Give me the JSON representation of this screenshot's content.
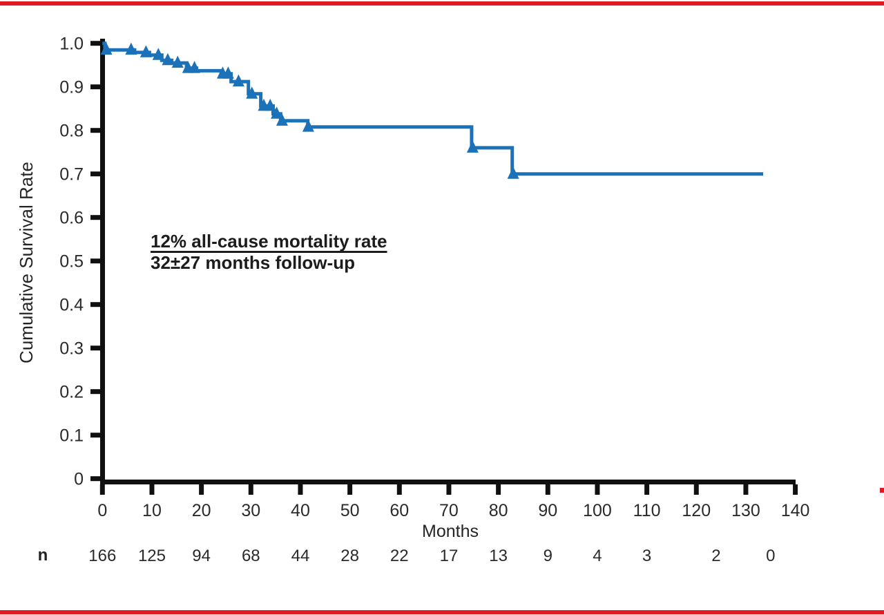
{
  "page": {
    "background": "#ffffff",
    "accent_red": "#e11b26",
    "axis_color": "#101010",
    "text_color": "#2a2a2a"
  },
  "chart_data": {
    "type": "line",
    "subtype": "kaplan-meier-step-curve",
    "title": "",
    "xlabel": "Months",
    "ylabel": "Cumulative Survival Rate",
    "xlim": [
      0,
      140
    ],
    "ylim": [
      0,
      1.0
    ],
    "grid": false,
    "legend": "none",
    "x_tick_values": [
      0,
      10,
      20,
      30,
      40,
      50,
      60,
      70,
      80,
      90,
      100,
      110,
      120,
      130,
      140
    ],
    "x_tick_labels": [
      "0",
      "10",
      "20",
      "30",
      "40",
      "50",
      "60",
      "70",
      "80",
      "90",
      "100",
      "110",
      "120",
      "130",
      "140"
    ],
    "y_tick_values": [
      1.0,
      0.9,
      0.8,
      0.7,
      0.6,
      0.5,
      0.4,
      0.3,
      0.2,
      0.1,
      0
    ],
    "y_tick_labels": [
      "1.0",
      "0.9",
      "0.8",
      "0.7",
      "0.6",
      "0.5",
      "0.4",
      "0.3",
      "0.2",
      "0.1",
      "0"
    ],
    "series": [
      {
        "name": "Cumulative survival (all-cause mortality)",
        "color": "#1c72b8",
        "line_width": 5,
        "start": [
          0,
          1.0
        ],
        "steps": [
          [
            0.5,
            0.985
          ],
          [
            6.5,
            0.979
          ],
          [
            9.5,
            0.973
          ],
          [
            12,
            0.961
          ],
          [
            14,
            0.955
          ],
          [
            17,
            0.943
          ],
          [
            19,
            0.937
          ],
          [
            24,
            0.93
          ],
          [
            26,
            0.912
          ],
          [
            29.5,
            0.884
          ],
          [
            32,
            0.856
          ],
          [
            34.5,
            0.838
          ],
          [
            36,
            0.822
          ],
          [
            41.5,
            0.808
          ],
          [
            74.6,
            0.76
          ],
          [
            82.8,
            0.7
          ]
        ],
        "end_x": 133.5
      }
    ],
    "censor_marks": {
      "shape": "triangle-up",
      "color": "#1c72b8",
      "points": [
        [
          0.8,
          0.985
        ],
        [
          5.8,
          0.985
        ],
        [
          8.8,
          0.979
        ],
        [
          11.3,
          0.973
        ],
        [
          13.2,
          0.961
        ],
        [
          15.2,
          0.955
        ],
        [
          17.3,
          0.943
        ],
        [
          18.6,
          0.943
        ],
        [
          24.3,
          0.93
        ],
        [
          25.4,
          0.93
        ],
        [
          27.5,
          0.912
        ],
        [
          30.2,
          0.884
        ],
        [
          32.6,
          0.856
        ],
        [
          33.9,
          0.856
        ],
        [
          35.2,
          0.838
        ],
        [
          36.3,
          0.822
        ],
        [
          41.6,
          0.808
        ],
        [
          74.8,
          0.76
        ],
        [
          83.0,
          0.7
        ]
      ]
    },
    "annotation": {
      "line1": "12% all-cause mortality rate",
      "line2": "32±27 months follow-up"
    },
    "at_risk": {
      "label": "n",
      "months": [
        0,
        10,
        20,
        30,
        40,
        50,
        60,
        70,
        80,
        90,
        100,
        110,
        124,
        135
      ],
      "counts": [
        "166",
        "125",
        "94",
        "68",
        "44",
        "28",
        "22",
        "17",
        "13",
        "9",
        "4",
        "3",
        "2",
        "0"
      ]
    }
  }
}
